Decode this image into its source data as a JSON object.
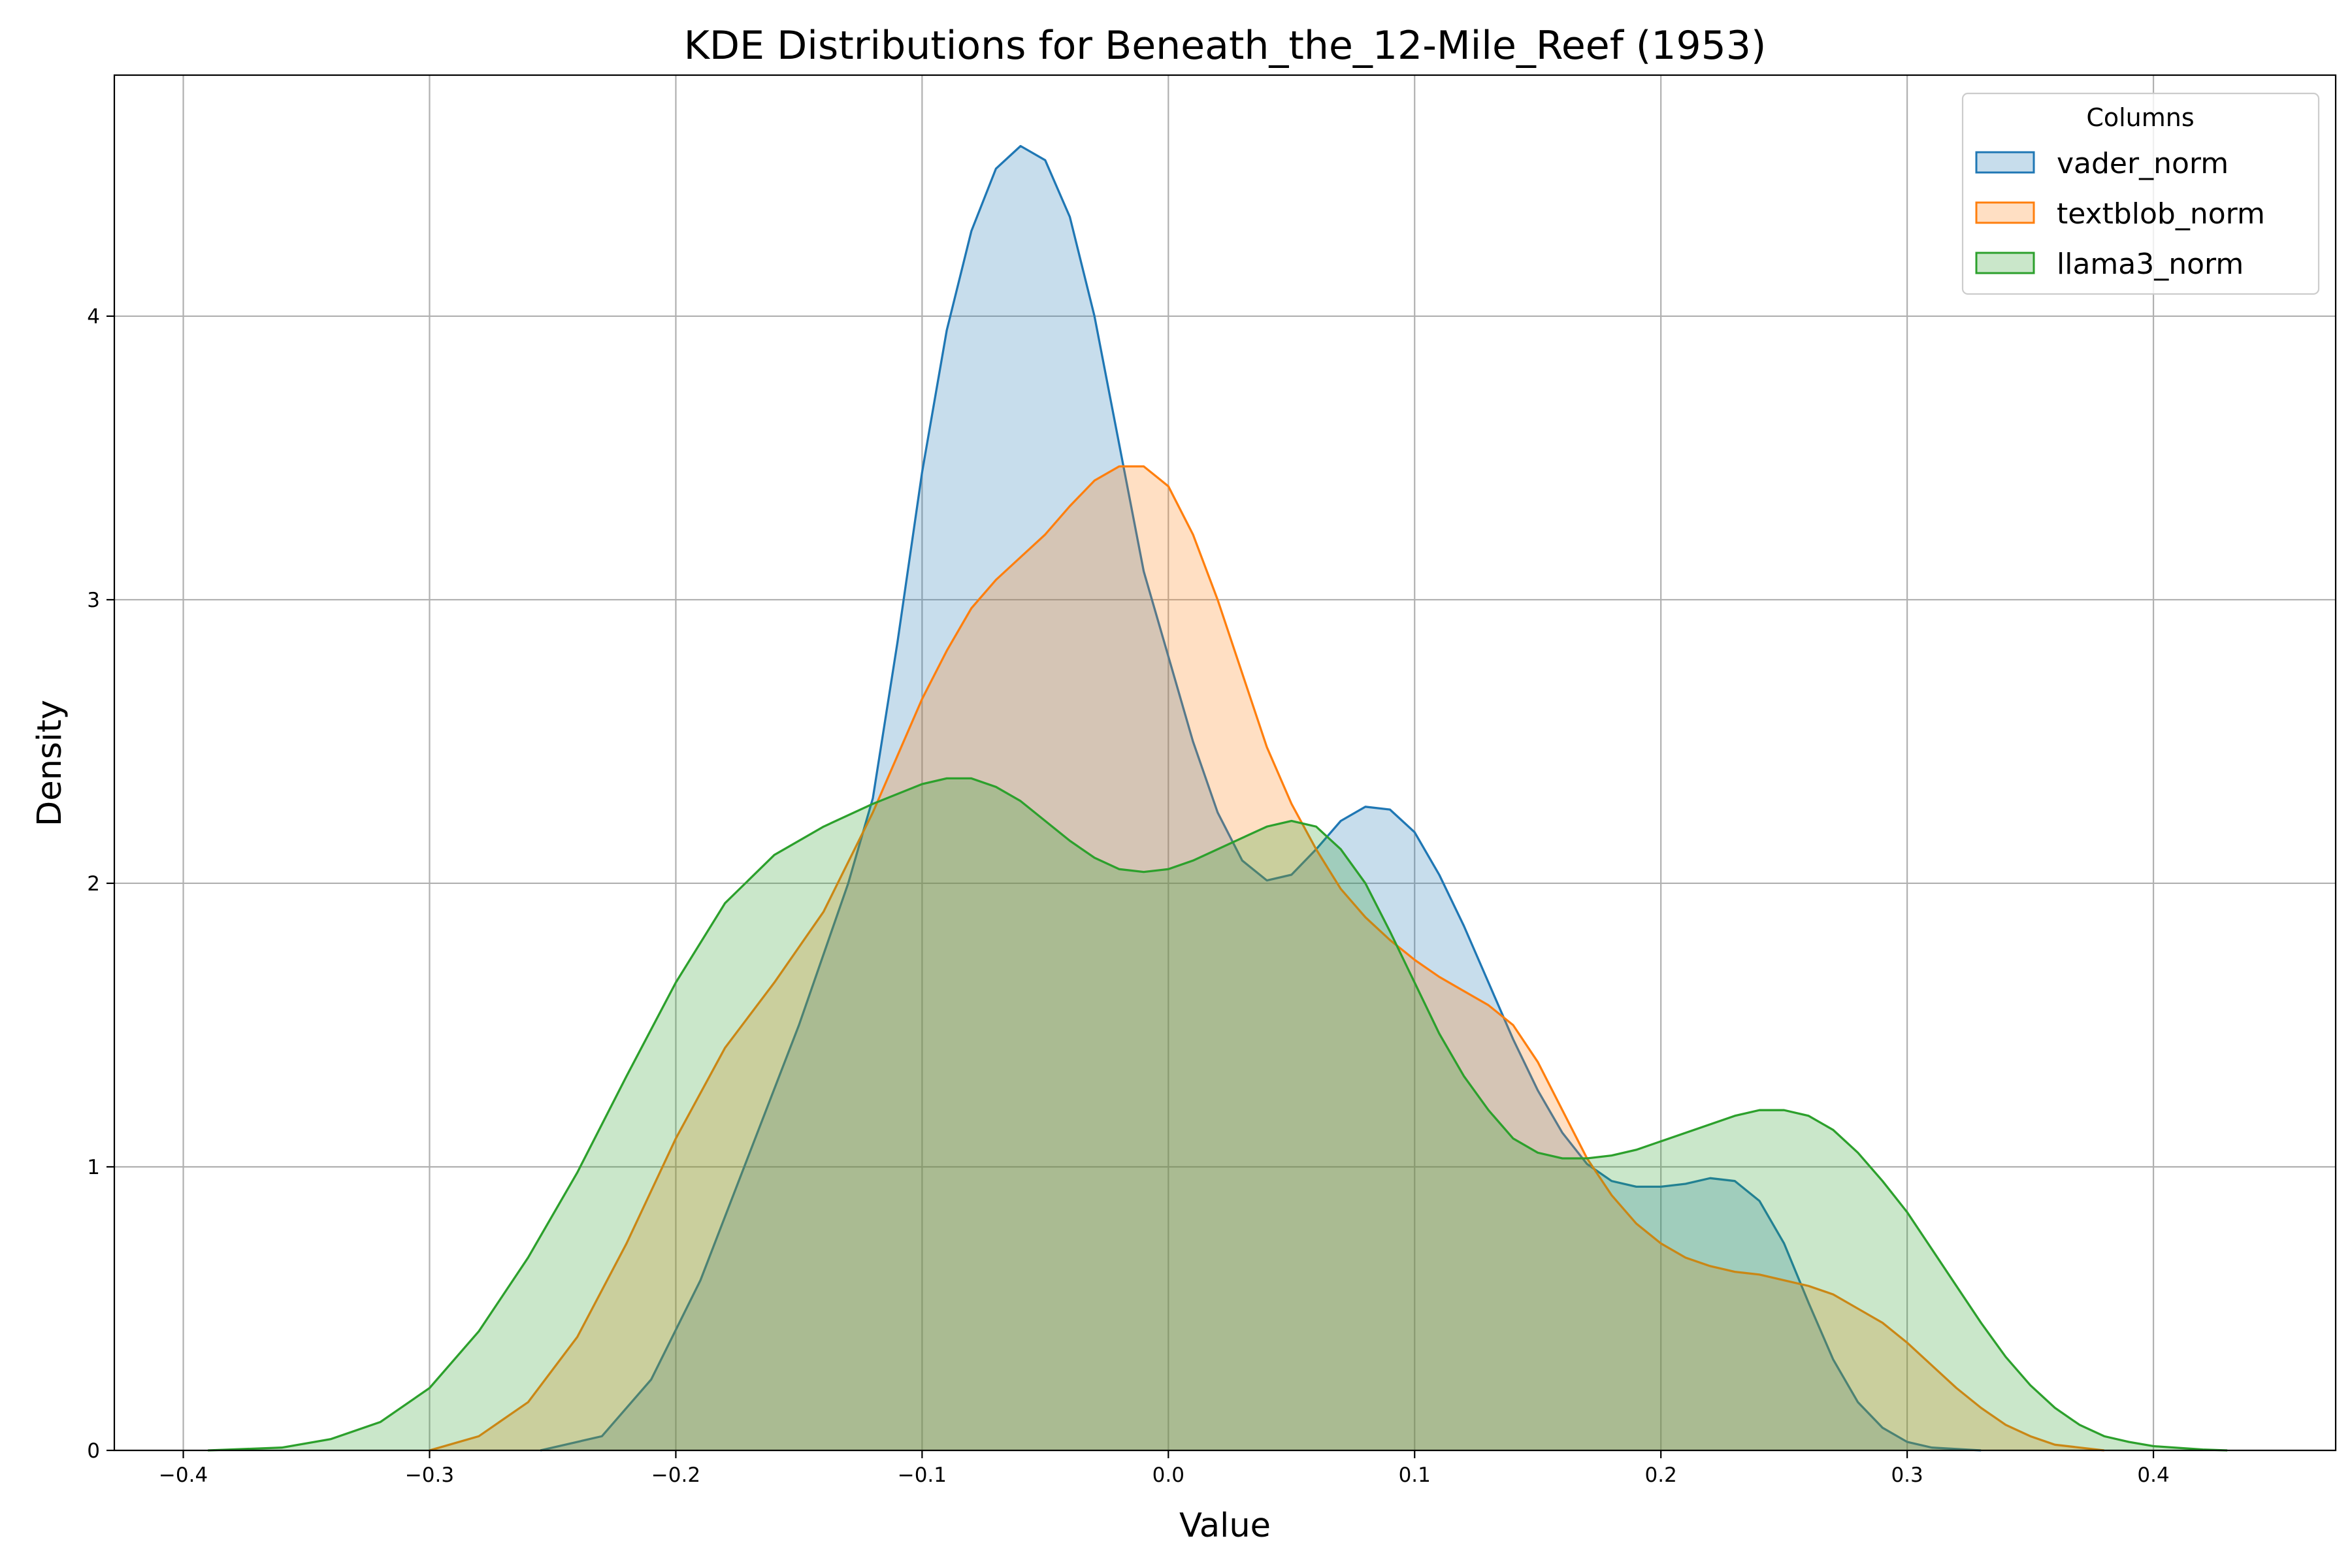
{
  "chart_data": {
    "type": "area",
    "title": "KDE Distributions for Beneath_the_12-Mile_Reef (1953)",
    "xlabel": "Value",
    "ylabel": "Density",
    "xlim": [
      -0.428,
      0.474
    ],
    "ylim": [
      0,
      4.85
    ],
    "xticks": [
      -0.4,
      -0.3,
      -0.2,
      -0.1,
      0.0,
      0.1,
      0.2,
      0.3,
      0.4
    ],
    "xtick_labels": [
      "−0.4",
      "−0.3",
      "−0.2",
      "−0.1",
      "0.0",
      "0.1",
      "0.2",
      "0.3",
      "0.4"
    ],
    "yticks": [
      0,
      1,
      2,
      3,
      4
    ],
    "ytick_labels": [
      "0",
      "1",
      "2",
      "3",
      "4"
    ],
    "grid": true,
    "legend": {
      "title": "Columns",
      "placement": "top-right"
    },
    "series": [
      {
        "name": "vader_norm",
        "color": "#1f77b4",
        "fill": "#1f77b4",
        "points": [
          [
            -0.255,
            0
          ],
          [
            -0.23,
            0.05
          ],
          [
            -0.21,
            0.25
          ],
          [
            -0.19,
            0.6
          ],
          [
            -0.17,
            1.05
          ],
          [
            -0.15,
            1.5
          ],
          [
            -0.13,
            2.0
          ],
          [
            -0.12,
            2.3
          ],
          [
            -0.11,
            2.85
          ],
          [
            -0.1,
            3.45
          ],
          [
            -0.09,
            3.95
          ],
          [
            -0.08,
            4.3
          ],
          [
            -0.07,
            4.52
          ],
          [
            -0.06,
            4.6
          ],
          [
            -0.05,
            4.55
          ],
          [
            -0.04,
            4.35
          ],
          [
            -0.03,
            4.0
          ],
          [
            -0.02,
            3.55
          ],
          [
            -0.01,
            3.1
          ],
          [
            0.0,
            2.8
          ],
          [
            0.01,
            2.5
          ],
          [
            0.02,
            2.25
          ],
          [
            0.03,
            2.08
          ],
          [
            0.04,
            2.01
          ],
          [
            0.05,
            2.03
          ],
          [
            0.06,
            2.12
          ],
          [
            0.07,
            2.22
          ],
          [
            0.08,
            2.27
          ],
          [
            0.09,
            2.26
          ],
          [
            0.1,
            2.18
          ],
          [
            0.11,
            2.03
          ],
          [
            0.12,
            1.85
          ],
          [
            0.13,
            1.65
          ],
          [
            0.14,
            1.45
          ],
          [
            0.15,
            1.27
          ],
          [
            0.16,
            1.12
          ],
          [
            0.17,
            1.01
          ],
          [
            0.18,
            0.95
          ],
          [
            0.19,
            0.93
          ],
          [
            0.2,
            0.93
          ],
          [
            0.21,
            0.94
          ],
          [
            0.22,
            0.96
          ],
          [
            0.23,
            0.95
          ],
          [
            0.24,
            0.88
          ],
          [
            0.25,
            0.73
          ],
          [
            0.26,
            0.52
          ],
          [
            0.27,
            0.32
          ],
          [
            0.28,
            0.17
          ],
          [
            0.29,
            0.08
          ],
          [
            0.3,
            0.03
          ],
          [
            0.31,
            0.01
          ],
          [
            0.33,
            0
          ]
        ]
      },
      {
        "name": "textblob_norm",
        "color": "#ff7f0e",
        "fill": "#ff7f0e",
        "points": [
          [
            -0.3,
            0
          ],
          [
            -0.28,
            0.05
          ],
          [
            -0.26,
            0.17
          ],
          [
            -0.24,
            0.4
          ],
          [
            -0.22,
            0.73
          ],
          [
            -0.2,
            1.1
          ],
          [
            -0.18,
            1.42
          ],
          [
            -0.16,
            1.65
          ],
          [
            -0.14,
            1.9
          ],
          [
            -0.12,
            2.25
          ],
          [
            -0.1,
            2.65
          ],
          [
            -0.09,
            2.82
          ],
          [
            -0.08,
            2.97
          ],
          [
            -0.07,
            3.07
          ],
          [
            -0.06,
            3.15
          ],
          [
            -0.05,
            3.23
          ],
          [
            -0.04,
            3.33
          ],
          [
            -0.03,
            3.42
          ],
          [
            -0.02,
            3.47
          ],
          [
            -0.01,
            3.47
          ],
          [
            0.0,
            3.4
          ],
          [
            0.01,
            3.23
          ],
          [
            0.02,
            3.0
          ],
          [
            0.03,
            2.74
          ],
          [
            0.04,
            2.48
          ],
          [
            0.05,
            2.28
          ],
          [
            0.06,
            2.12
          ],
          [
            0.07,
            1.98
          ],
          [
            0.08,
            1.88
          ],
          [
            0.09,
            1.8
          ],
          [
            0.1,
            1.73
          ],
          [
            0.11,
            1.67
          ],
          [
            0.12,
            1.62
          ],
          [
            0.13,
            1.57
          ],
          [
            0.14,
            1.5
          ],
          [
            0.15,
            1.37
          ],
          [
            0.16,
            1.2
          ],
          [
            0.17,
            1.03
          ],
          [
            0.18,
            0.9
          ],
          [
            0.19,
            0.8
          ],
          [
            0.2,
            0.73
          ],
          [
            0.21,
            0.68
          ],
          [
            0.22,
            0.65
          ],
          [
            0.23,
            0.63
          ],
          [
            0.24,
            0.62
          ],
          [
            0.25,
            0.6
          ],
          [
            0.26,
            0.58
          ],
          [
            0.27,
            0.55
          ],
          [
            0.28,
            0.5
          ],
          [
            0.29,
            0.45
          ],
          [
            0.3,
            0.38
          ],
          [
            0.31,
            0.3
          ],
          [
            0.32,
            0.22
          ],
          [
            0.33,
            0.15
          ],
          [
            0.34,
            0.09
          ],
          [
            0.35,
            0.05
          ],
          [
            0.36,
            0.02
          ],
          [
            0.38,
            0
          ]
        ]
      },
      {
        "name": "llama3_norm",
        "color": "#2ca02c",
        "fill": "#2ca02c",
        "points": [
          [
            -0.39,
            0
          ],
          [
            -0.36,
            0.01
          ],
          [
            -0.34,
            0.04
          ],
          [
            -0.32,
            0.1
          ],
          [
            -0.3,
            0.22
          ],
          [
            -0.28,
            0.42
          ],
          [
            -0.26,
            0.68
          ],
          [
            -0.24,
            0.98
          ],
          [
            -0.22,
            1.32
          ],
          [
            -0.2,
            1.65
          ],
          [
            -0.18,
            1.93
          ],
          [
            -0.16,
            2.1
          ],
          [
            -0.14,
            2.2
          ],
          [
            -0.12,
            2.28
          ],
          [
            -0.1,
            2.35
          ],
          [
            -0.09,
            2.37
          ],
          [
            -0.08,
            2.37
          ],
          [
            -0.07,
            2.34
          ],
          [
            -0.06,
            2.29
          ],
          [
            -0.05,
            2.22
          ],
          [
            -0.04,
            2.15
          ],
          [
            -0.03,
            2.09
          ],
          [
            -0.02,
            2.05
          ],
          [
            -0.01,
            2.04
          ],
          [
            0.0,
            2.05
          ],
          [
            0.01,
            2.08
          ],
          [
            0.02,
            2.12
          ],
          [
            0.03,
            2.16
          ],
          [
            0.04,
            2.2
          ],
          [
            0.05,
            2.22
          ],
          [
            0.06,
            2.2
          ],
          [
            0.07,
            2.12
          ],
          [
            0.08,
            2.0
          ],
          [
            0.09,
            1.83
          ],
          [
            0.1,
            1.65
          ],
          [
            0.11,
            1.47
          ],
          [
            0.12,
            1.32
          ],
          [
            0.13,
            1.2
          ],
          [
            0.14,
            1.1
          ],
          [
            0.15,
            1.05
          ],
          [
            0.16,
            1.03
          ],
          [
            0.17,
            1.03
          ],
          [
            0.18,
            1.04
          ],
          [
            0.19,
            1.06
          ],
          [
            0.2,
            1.09
          ],
          [
            0.21,
            1.12
          ],
          [
            0.22,
            1.15
          ],
          [
            0.23,
            1.18
          ],
          [
            0.24,
            1.2
          ],
          [
            0.25,
            1.2
          ],
          [
            0.26,
            1.18
          ],
          [
            0.27,
            1.13
          ],
          [
            0.28,
            1.05
          ],
          [
            0.29,
            0.95
          ],
          [
            0.3,
            0.84
          ],
          [
            0.31,
            0.71
          ],
          [
            0.32,
            0.58
          ],
          [
            0.33,
            0.45
          ],
          [
            0.34,
            0.33
          ],
          [
            0.35,
            0.23
          ],
          [
            0.36,
            0.15
          ],
          [
            0.37,
            0.09
          ],
          [
            0.38,
            0.05
          ],
          [
            0.39,
            0.03
          ],
          [
            0.4,
            0.015
          ],
          [
            0.42,
            0.003
          ],
          [
            0.43,
            0
          ]
        ]
      }
    ]
  }
}
